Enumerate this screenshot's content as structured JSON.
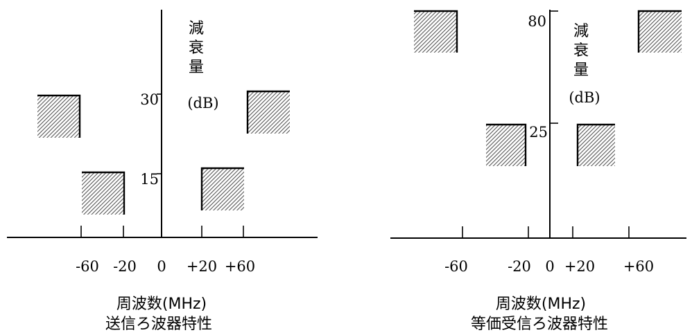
{
  "left_chart": {
    "y_axis_label_chars": [
      "減",
      "衰",
      "量"
    ],
    "y_axis_unit": "(dB)",
    "y_tick_labels": [
      "30",
      "15"
    ],
    "x_tick_labels": [
      "-60",
      "-20",
      "0",
      "+20",
      "+60"
    ],
    "x_axis_title": "周波数(MHz)",
    "caption": "送信ろ波器特性"
  },
  "right_chart": {
    "y_axis_label_chars": [
      "減",
      "衰",
      "量"
    ],
    "y_axis_unit": "(dB)",
    "y_tick_labels": [
      "80",
      "25"
    ],
    "x_tick_labels": [
      "-60",
      "-20",
      "0",
      "+20",
      "+60"
    ],
    "x_axis_title": "周波数(MHz)",
    "caption": "等価受信ろ波器特性"
  },
  "colors": {
    "line": "#000000",
    "hatch": "#555555",
    "background": "#ffffff"
  }
}
